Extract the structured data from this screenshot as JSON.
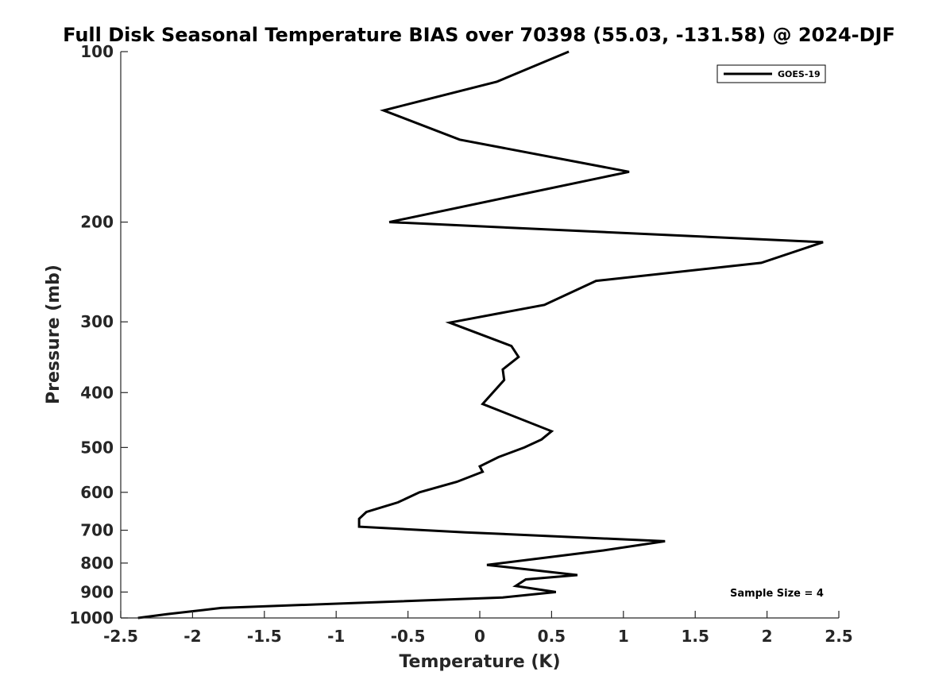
{
  "chart_data": {
    "type": "line",
    "title": "Full Disk Seasonal Temperature BIAS over 70398 (55.03, -131.58) @ 2024-DJF",
    "xlabel": "Temperature (K)",
    "ylabel": "Pressure (mb)",
    "xlim": [
      -2.5,
      2.5
    ],
    "ylim": [
      100,
      1000
    ],
    "y_scale": "log",
    "y_reversed": true,
    "x_ticks": [
      -2.5,
      -2,
      -1.5,
      -1,
      -0.5,
      0,
      0.5,
      1,
      1.5,
      2,
      2.5
    ],
    "x_tick_labels": [
      "-2.5",
      "-2",
      "-1.5",
      "-1",
      "-0.5",
      "0",
      "0.5",
      "1",
      "1.5",
      "2",
      "2.5"
    ],
    "y_ticks": [
      100,
      200,
      300,
      400,
      500,
      600,
      700,
      800,
      900,
      1000
    ],
    "y_tick_labels": [
      "100",
      "200",
      "300",
      "400",
      "500",
      "600",
      "700",
      "800",
      "900",
      "1000"
    ],
    "grid": false,
    "legend_position": "top-right",
    "line_color": "#000000",
    "series": [
      {
        "name": "GOES-19",
        "x": [
          0.62,
          0.12,
          -0.67,
          -0.14,
          1.04,
          -0.63,
          2.39,
          1.96,
          0.81,
          0.45,
          -0.21,
          0.22,
          0.27,
          0.16,
          0.17,
          0.02,
          0.5,
          0.43,
          0.31,
          0.13,
          0.0,
          0.02,
          -0.16,
          -0.42,
          -0.57,
          -0.79,
          -0.84,
          -0.84,
          -0.1,
          1.29,
          0.86,
          0.5,
          0.05,
          0.68,
          0.32,
          0.25,
          0.53,
          0.16,
          -1.8,
          -2.18,
          -2.38
        ],
        "y": [
          100,
          113,
          127,
          143,
          163,
          200,
          217,
          236,
          254,
          280,
          301,
          331,
          346,
          364,
          380,
          419,
          468,
          484,
          500,
          520,
          540,
          552,
          575,
          600,
          625,
          650,
          668,
          690,
          706,
          732,
          760,
          780,
          806,
          840,
          855,
          878,
          900,
          920,
          960,
          985,
          1000
        ]
      }
    ],
    "annotations": [
      "Sample Size = 4"
    ]
  }
}
